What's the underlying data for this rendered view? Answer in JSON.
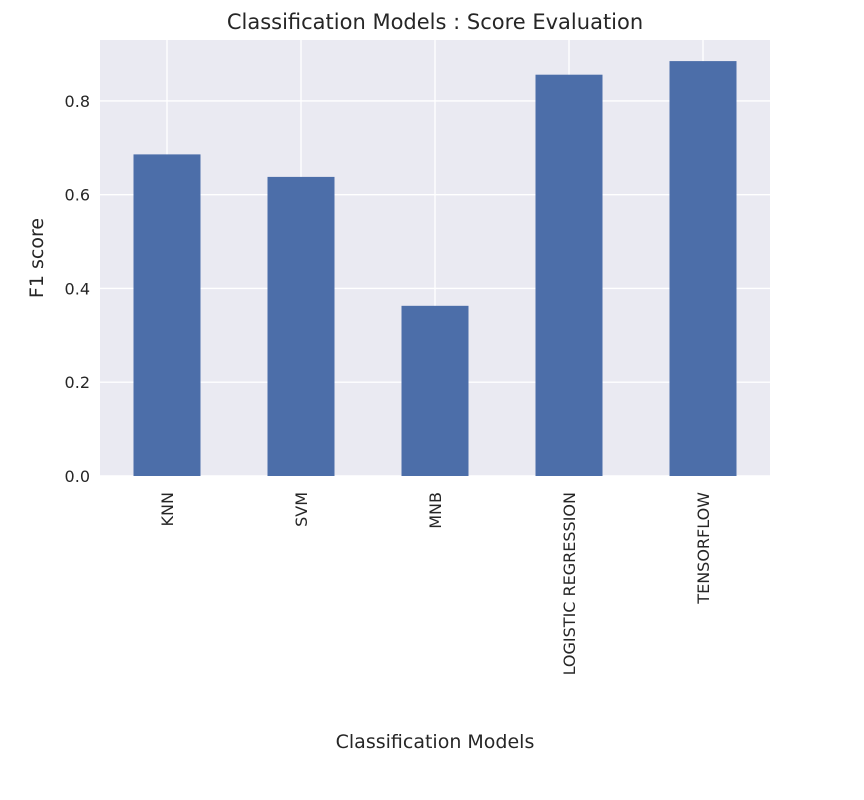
{
  "chart_data": {
    "type": "bar",
    "title": "Classification Models : Score Evaluation",
    "xlabel": "Classification Models",
    "ylabel": "F1 score",
    "categories": [
      "KNN",
      "SVM",
      "MNB",
      "LOGISTIC REGRESSION",
      "TENSORFLOW"
    ],
    "values": [
      0.686,
      0.638,
      0.363,
      0.856,
      0.885
    ],
    "ylim": [
      0,
      0.93
    ],
    "yticks": [
      "0.0",
      "0.2",
      "0.4",
      "0.6",
      "0.8"
    ],
    "grid": true,
    "legend": "none",
    "colors": {
      "bar": "#4c6ea9",
      "plot_background": "#eaeaf2",
      "grid": "#ffffff",
      "text": "#262626"
    }
  }
}
